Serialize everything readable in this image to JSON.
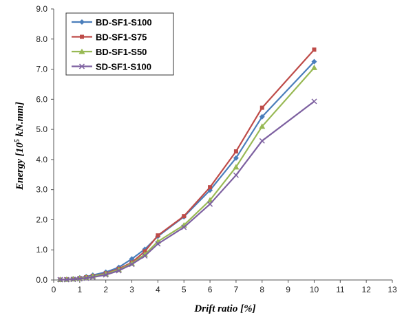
{
  "chart_data": {
    "type": "line",
    "xlabel": "Drift ratio [%]",
    "ylabel_parts": [
      "Energy [10",
      "5",
      " kN.mm]"
    ],
    "xlim": [
      0,
      13
    ],
    "ylim": [
      0,
      9
    ],
    "x_ticks": [
      "0",
      "1",
      "2",
      "3",
      "4",
      "5",
      "6",
      "7",
      "8",
      "9",
      "10",
      "11",
      "12",
      "13"
    ],
    "y_ticks": [
      "0.0",
      "1.0",
      "2.0",
      "3.0",
      "4.0",
      "5.0",
      "6.0",
      "7.0",
      "8.0",
      "9.0"
    ],
    "grid": false,
    "legend_position": "top-left",
    "series": [
      {
        "name": "BD-SF1-S100",
        "color": "#4a7ebb",
        "marker": "diamond",
        "x": [
          0.25,
          0.5,
          0.75,
          1.0,
          1.25,
          1.5,
          2.0,
          2.5,
          3.0,
          3.5,
          4.0,
          5.0,
          6.0,
          7.0,
          8.0,
          10.0
        ],
        "y": [
          0.01,
          0.02,
          0.04,
          0.07,
          0.11,
          0.16,
          0.26,
          0.42,
          0.7,
          1.02,
          1.45,
          2.1,
          2.98,
          4.05,
          5.42,
          7.25
        ]
      },
      {
        "name": "BD-SF1-S75",
        "color": "#be4b48",
        "marker": "square",
        "x": [
          0.25,
          0.5,
          0.75,
          1.0,
          1.25,
          1.5,
          2.0,
          2.5,
          3.0,
          3.5,
          4.0,
          5.0,
          6.0,
          7.0,
          8.0,
          10.0
        ],
        "y": [
          0.01,
          0.02,
          0.03,
          0.06,
          0.09,
          0.13,
          0.22,
          0.37,
          0.58,
          0.95,
          1.48,
          2.12,
          3.08,
          4.27,
          5.72,
          7.65
        ]
      },
      {
        "name": "BD-SF1-S50",
        "color": "#98b954",
        "marker": "triangle",
        "x": [
          0.25,
          0.5,
          0.75,
          1.0,
          1.25,
          1.5,
          2.0,
          2.5,
          3.0,
          3.5,
          4.0,
          5.0,
          6.0,
          7.0,
          8.0,
          10.0
        ],
        "y": [
          0.01,
          0.02,
          0.03,
          0.05,
          0.08,
          0.12,
          0.2,
          0.34,
          0.55,
          0.85,
          1.28,
          1.82,
          2.65,
          3.75,
          5.1,
          7.05
        ]
      },
      {
        "name": "SD-SF1-S100",
        "color": "#7d60a0",
        "marker": "x",
        "x": [
          0.25,
          0.5,
          0.75,
          1.0,
          1.25,
          1.5,
          2.0,
          2.5,
          3.0,
          3.5,
          4.0,
          5.0,
          6.0,
          7.0,
          8.0,
          10.0
        ],
        "y": [
          0.01,
          0.01,
          0.02,
          0.04,
          0.06,
          0.09,
          0.17,
          0.31,
          0.52,
          0.8,
          1.2,
          1.75,
          2.52,
          3.48,
          4.62,
          5.93
        ]
      }
    ]
  }
}
